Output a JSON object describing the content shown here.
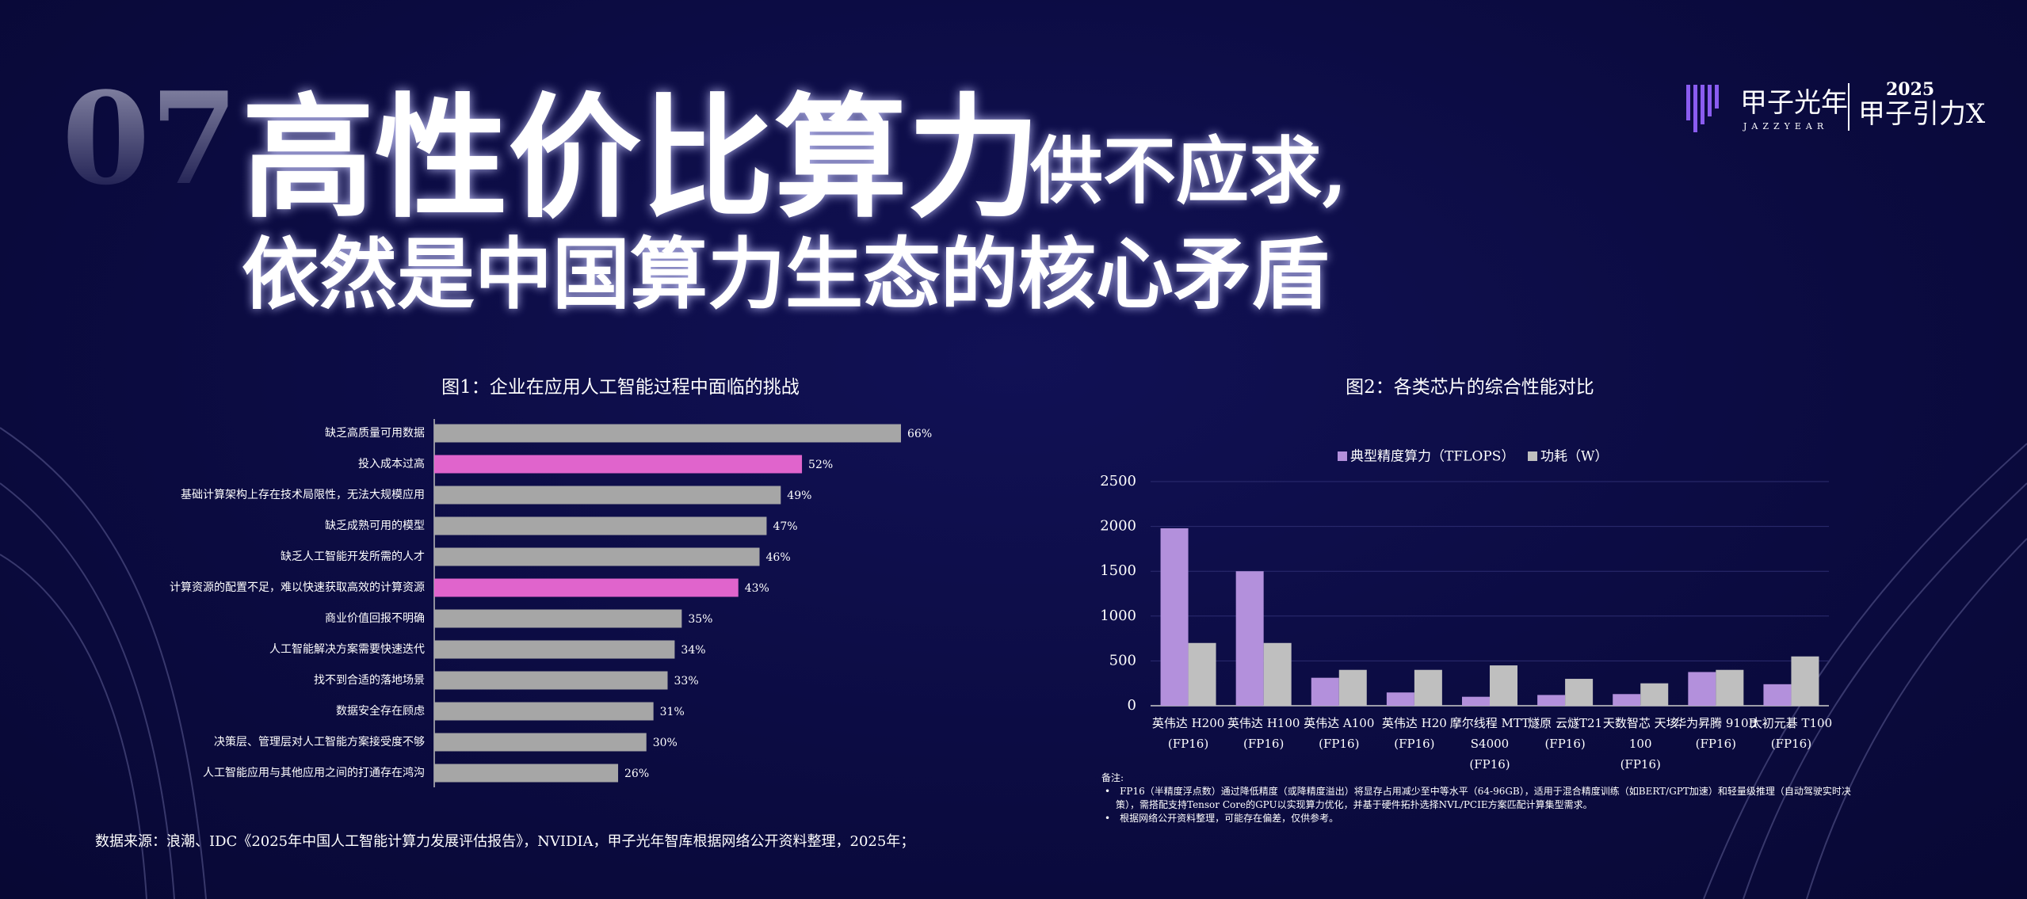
{
  "header": {
    "section": "07",
    "title_main": "高性价比算力",
    "title_sub": "供不应求,",
    "title_line2": "依然是中国算力生态的核心矛盾"
  },
  "logo": {
    "brand": "甲子光年",
    "brand_en": "JAZZYEAR",
    "event_year": "2025",
    "event": "甲子引力X"
  },
  "chart_data": [
    {
      "type": "barh",
      "title": "图1：企业在应用人工智能过程中面临的挑战",
      "categories": [
        "缺乏高质量可用数据",
        "投入成本过高",
        "基础计算架构上存在技术局限性，无法大规模应用",
        "缺乏成熟可用的模型",
        "缺乏人工智能开发所需的人才",
        "计算资源的配置不足，难以快速获取高效的计算资源",
        "商业价值回报不明确",
        "人工智能解决方案需要快速迭代",
        "找不到合适的落地场景",
        "数据安全存在顾虑",
        "决策层、管理层对人工智能方案接受度不够",
        "人工智能应用与其他应用之间的打通存在鸿沟"
      ],
      "values": [
        66,
        52,
        49,
        47,
        46,
        43,
        35,
        34,
        33,
        31,
        30,
        26
      ],
      "value_labels": [
        "66%",
        "52%",
        "49%",
        "47%",
        "46%",
        "43%",
        "35%",
        "34%",
        "33%",
        "31%",
        "30%",
        "26%"
      ],
      "colors": [
        "#a6a6a6",
        "#e064cc",
        "#a6a6a6",
        "#a6a6a6",
        "#a6a6a6",
        "#e064cc",
        "#a6a6a6",
        "#a6a6a6",
        "#a6a6a6",
        "#a6a6a6",
        "#a6a6a6",
        "#a6a6a6"
      ]
    },
    {
      "type": "bar",
      "title": "图2：各类芯片的综合性能对比",
      "categories": [
        [
          "英伟达 H200",
          "(FP16)"
        ],
        [
          "英伟达 H100",
          "(FP16)"
        ],
        [
          "英伟达 A100",
          "(FP16)"
        ],
        [
          "英伟达 H20",
          "(FP16)"
        ],
        [
          "摩尔线程 MTT",
          "S4000",
          "(FP16)"
        ],
        [
          "燧原 云燧T21",
          "(FP16)"
        ],
        [
          "天数智芯 天垓",
          "100",
          "(FP16)"
        ],
        [
          "华为昇腾 910B",
          "(FP16)"
        ],
        [
          "太初元碁 T100",
          "(FP16)"
        ]
      ],
      "series": [
        {
          "name": "典型精度算力（TFLOPS）",
          "color": "#b390dc",
          "values": [
            1979,
            1500,
            312,
            148,
            100,
            120,
            130,
            376,
            240
          ]
        },
        {
          "name": "功耗（W）",
          "color": "#bfbfbf",
          "values": [
            700,
            700,
            400,
            400,
            450,
            300,
            250,
            400,
            550
          ]
        }
      ],
      "ylim": [
        0,
        2500
      ],
      "yticks": [
        0,
        500,
        1000,
        1500,
        2000,
        2500
      ],
      "grid": true,
      "legend": "top"
    }
  ],
  "notes": {
    "title": "备注:",
    "items": [
      "FP16（半精度浮点数）通过降低精度（或降精度溢出）将显存占用减少至中等水平（64-96GB），适用于混合精度训练（如BERT/GPT加速）和轻量级推理（自动驾驶实时决策），需搭配支持Tensor Core的GPU以实现算力优化，并基于硬件拓扑选择NVL/PCIE方案匹配计算集型需求。",
      "根据网络公开资料整理，可能存在偏差，仅供参考。"
    ]
  },
  "source": "数据来源：浪潮、IDC《2025年中国人工智能计算力发展评估报告》，NVIDIA，甲子光年智库根据网络公开资料整理，2025年；"
}
